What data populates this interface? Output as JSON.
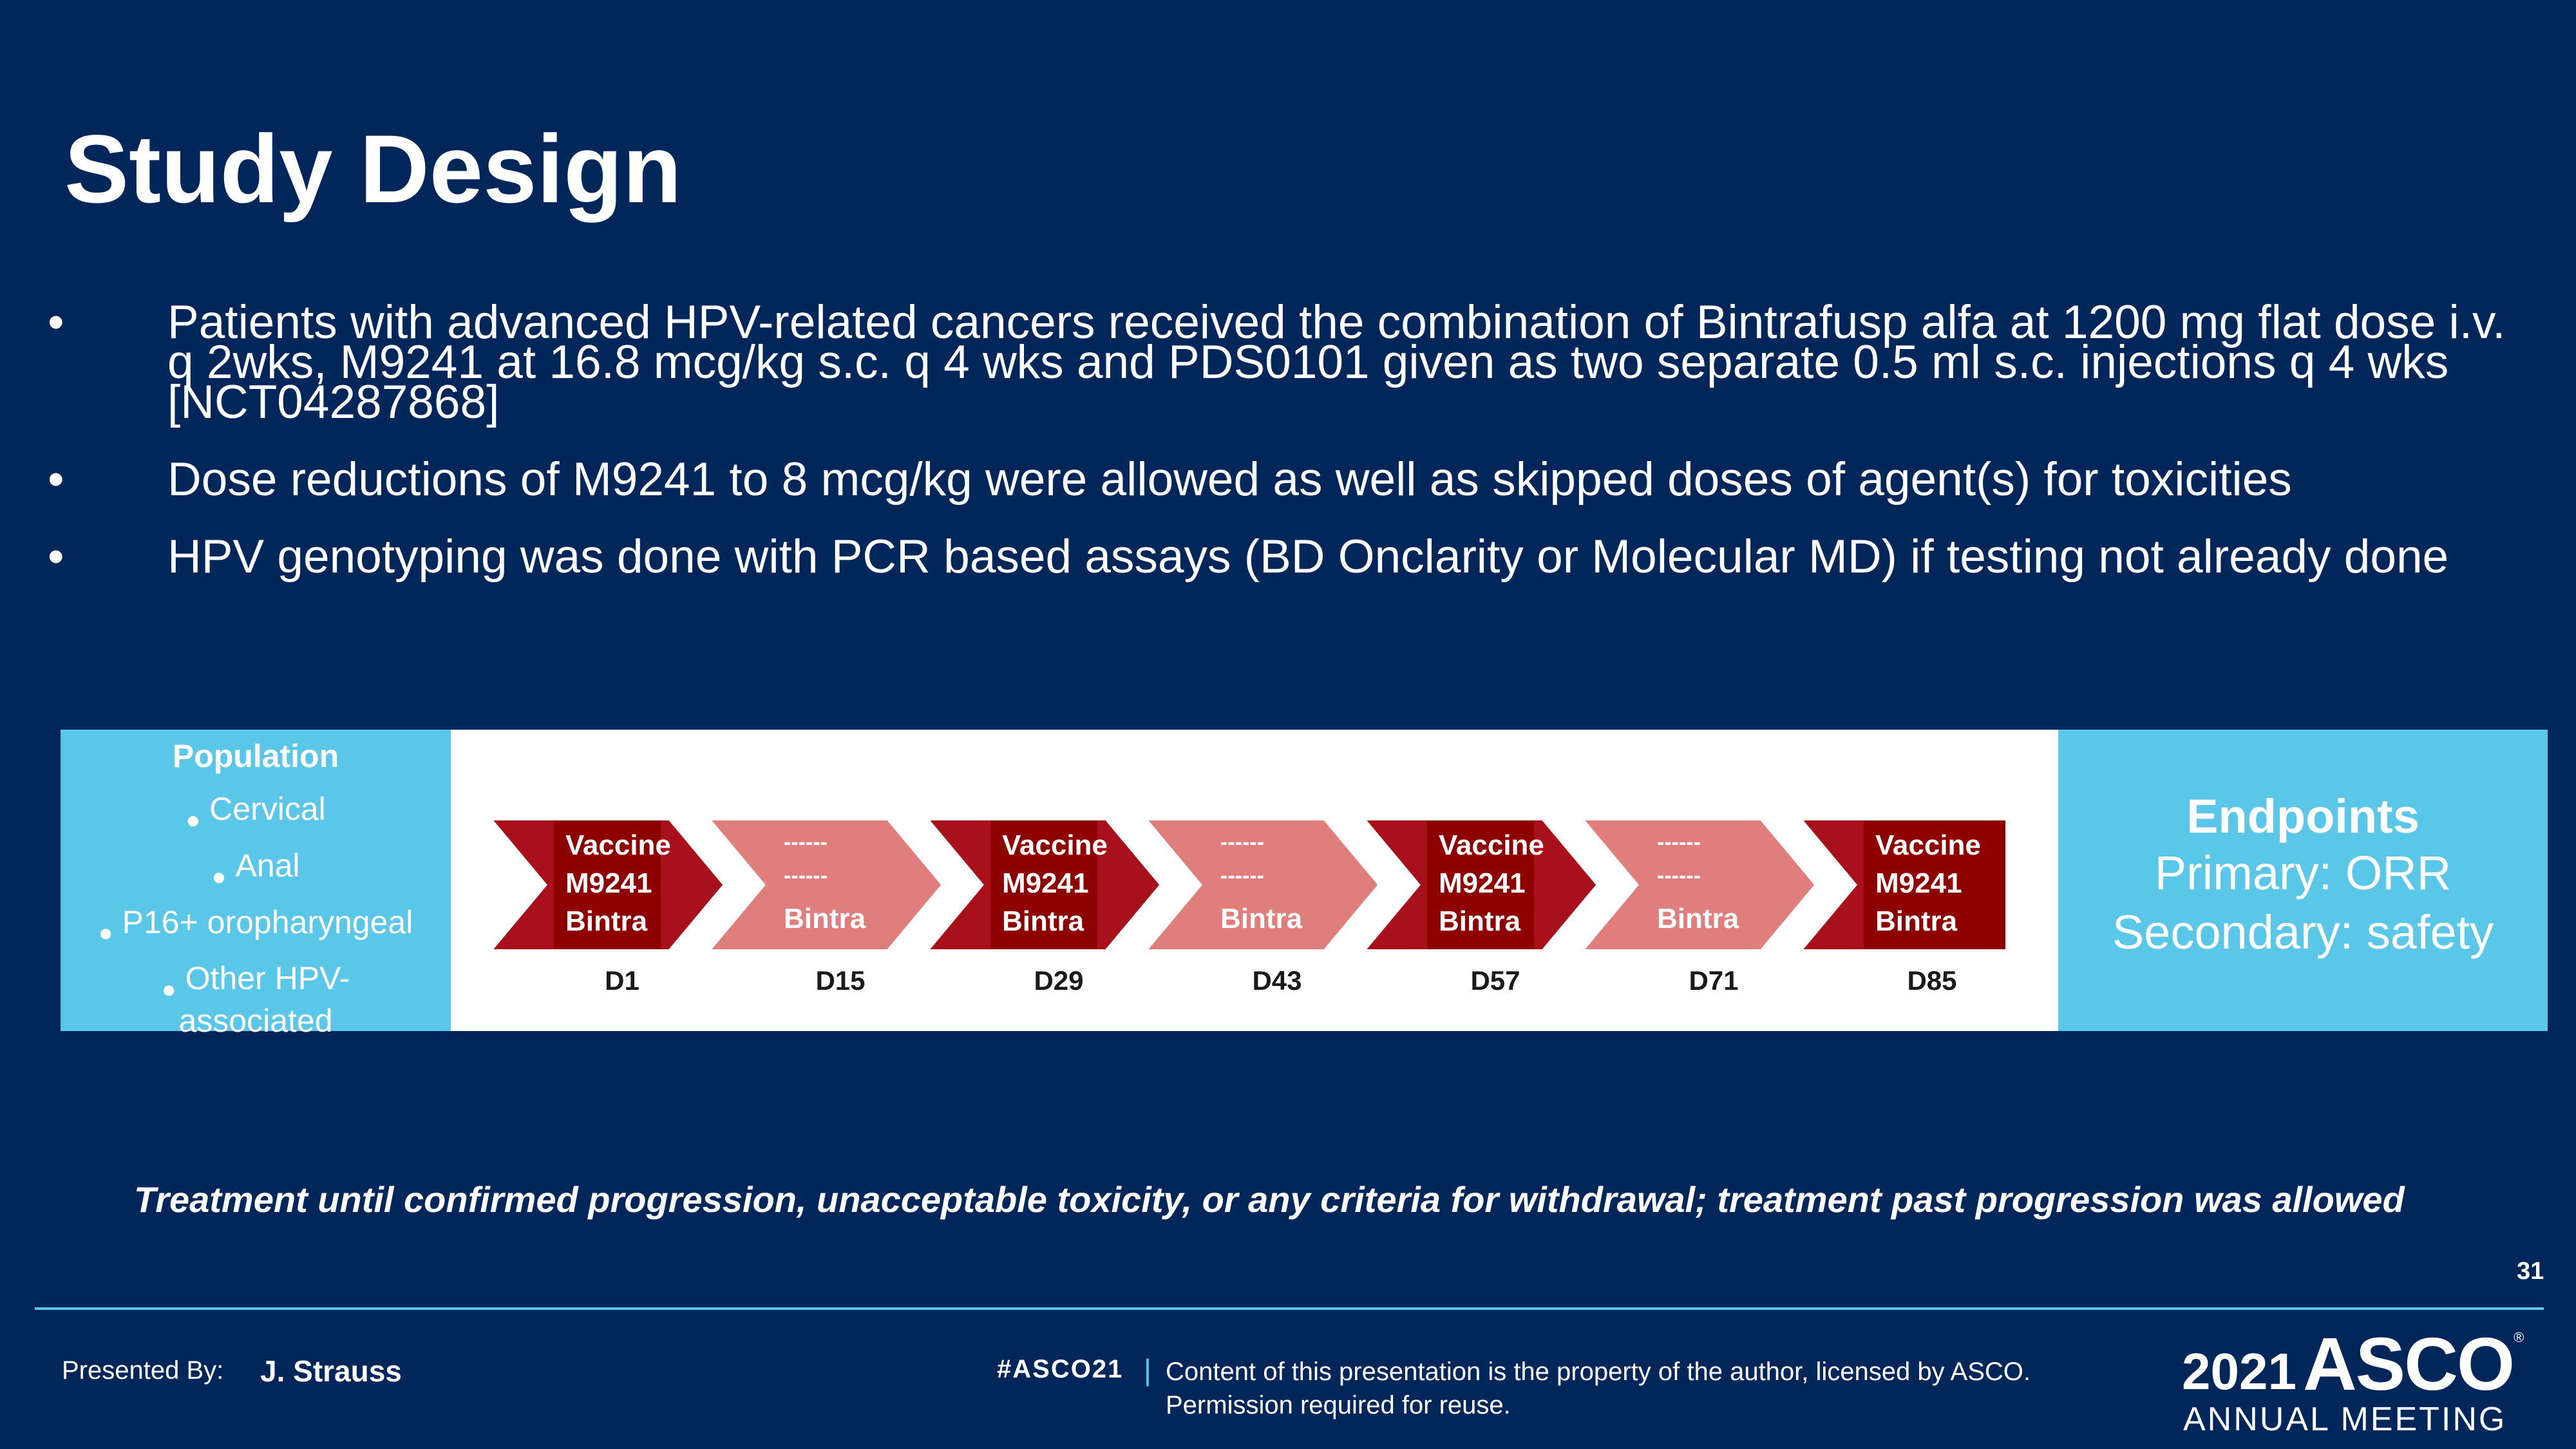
{
  "slide": {
    "title": "Study Design",
    "bullets": [
      "Patients with advanced HPV-related cancers received the combination of Bintrafusp alfa at 1200 mg flat dose i.v. q 2wks, M9241 at 16.8 mcg/kg s.c. q 4 wks and PDS0101 given as two separate 0.5 ml s.c. injections q 4 wks [NCT04287868]",
      "Dose reductions of M9241 to 8 mcg/kg were allowed as well as skipped doses of agent(s) for toxicities",
      "HPV genotyping was done with PCR based assays (BD Onclarity or Molecular MD) if testing not already done"
    ],
    "bullet_symbol": "•",
    "population": {
      "title": "Population",
      "items": [
        "Cervical",
        "Anal",
        "P16+ oropharyngeal",
        "Other HPV-associated"
      ],
      "bullet_symbol": "●"
    },
    "timeline": [
      {
        "lines": [
          "Vaccine",
          "M9241",
          "Bintra"
        ],
        "day": "D1",
        "kind": "vaccine"
      },
      {
        "lines": [
          "------",
          "------",
          "Bintra"
        ],
        "day": "D15",
        "kind": "bintra"
      },
      {
        "lines": [
          "Vaccine",
          "M9241",
          "Bintra"
        ],
        "day": "D29",
        "kind": "vaccine"
      },
      {
        "lines": [
          "------",
          "------",
          "Bintra"
        ],
        "day": "D43",
        "kind": "bintra"
      },
      {
        "lines": [
          "Vaccine",
          "M9241",
          "Bintra"
        ],
        "day": "D57",
        "kind": "vaccine"
      },
      {
        "lines": [
          "------",
          "------",
          "Bintra"
        ],
        "day": "D71",
        "kind": "bintra"
      },
      {
        "lines": [
          "Vaccine",
          "M9241",
          "Bintra"
        ],
        "day": "D85",
        "kind": "vaccine"
      }
    ],
    "endpoints": {
      "title": "Endpoints",
      "primary": "Primary: ORR",
      "secondary": "Secondary: safety"
    },
    "treatment_note": "Treatment until confirmed progression, unacceptable toxicity, or any criteria for withdrawal; treatment past progression was allowed",
    "page_number": "31"
  },
  "footer": {
    "presented_by_label": "Presented By:",
    "presenter": "J. Strauss",
    "hashtag": "#ASCO21",
    "separator": "|",
    "notice_line1": "Content of this presentation is the property of the author, licensed by ASCO.",
    "notice_line2": "Permission required for reuse.",
    "logo_year": "2021",
    "logo_name": "ASCO",
    "logo_reg": "®",
    "logo_subtitle": "ANNUAL MEETING"
  },
  "colors": {
    "background": "#00265a",
    "accent_blue": "#5bc7e8",
    "vaccine_red": "#a8111c",
    "bintra_pink": "#e07e7e"
  }
}
